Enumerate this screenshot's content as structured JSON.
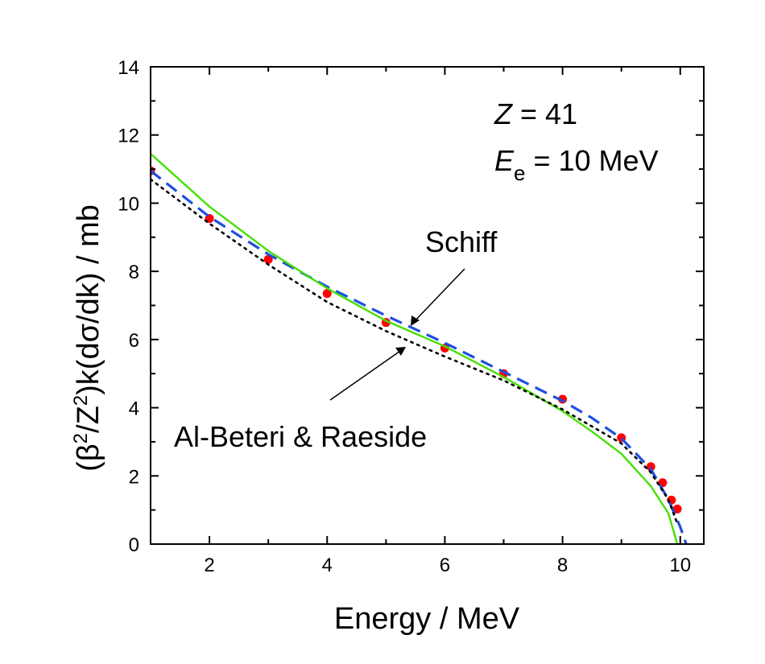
{
  "chart_data": {
    "type": "line",
    "title": "",
    "xlabel": "Energy / MeV",
    "ylabel": {
      "prefix": "(β",
      "sup1": "2",
      "mid": "/Z",
      "sup2": "2",
      "suffix": ")k(dσ/dk) / mb"
    },
    "xlim": [
      1,
      10.4
    ],
    "ylim": [
      0,
      14
    ],
    "xticks": [
      2,
      4,
      6,
      8,
      10
    ],
    "yticks": [
      0,
      2,
      4,
      6,
      8,
      10,
      12,
      14
    ],
    "grid": false,
    "legend": "none",
    "annotations": {
      "z_symbol": "Z",
      "z_value": " = 41",
      "e_symbol": "E",
      "e_sub": "e",
      "e_value": " = 10 MeV",
      "schiff": "Schiff",
      "al_beteri": "Al-Beteri & Raeside"
    },
    "series": [
      {
        "name": "Data points",
        "style": "markers",
        "color": "#ff0000",
        "x": [
          1.0,
          2.0,
          3.0,
          4.0,
          5.0,
          6.0,
          7.0,
          8.0,
          9.0,
          9.5,
          9.7,
          9.85,
          9.95
        ],
        "y": [
          10.95,
          9.55,
          8.35,
          7.35,
          6.5,
          5.75,
          5.0,
          4.25,
          3.12,
          2.27,
          1.8,
          1.29,
          1.03
        ]
      },
      {
        "name": "Blue dashed",
        "style": "dashed",
        "color": "#1f4fe0",
        "x": [
          1.0,
          2.0,
          3.0,
          4.0,
          5.0,
          6.0,
          7.0,
          8.0,
          8.5,
          9.0,
          9.5,
          9.8,
          10.0,
          10.1
        ],
        "y": [
          10.95,
          9.6,
          8.5,
          7.55,
          6.7,
          5.9,
          5.05,
          4.2,
          3.7,
          3.1,
          2.2,
          1.3,
          0.5,
          0.0
        ]
      },
      {
        "name": "Schiff",
        "style": "solid",
        "color": "#44e000",
        "x": [
          1.0,
          2.0,
          3.0,
          4.0,
          5.0,
          6.0,
          7.0,
          8.0,
          8.5,
          9.0,
          9.5,
          9.8,
          9.95
        ],
        "y": [
          11.45,
          9.9,
          8.6,
          7.5,
          6.55,
          5.8,
          4.9,
          3.9,
          3.3,
          2.65,
          1.7,
          0.9,
          0.0
        ]
      },
      {
        "name": "Al-Beteri & Raeside",
        "style": "dotted",
        "color": "#000000",
        "x": [
          1.0,
          2.0,
          3.0,
          4.0,
          5.0,
          6.0,
          7.0,
          8.0,
          9.0,
          9.5,
          9.8,
          9.95
        ],
        "y": [
          10.7,
          9.4,
          8.2,
          7.1,
          6.25,
          5.5,
          4.8,
          3.95,
          2.95,
          2.1,
          1.3,
          0.6
        ]
      }
    ]
  }
}
